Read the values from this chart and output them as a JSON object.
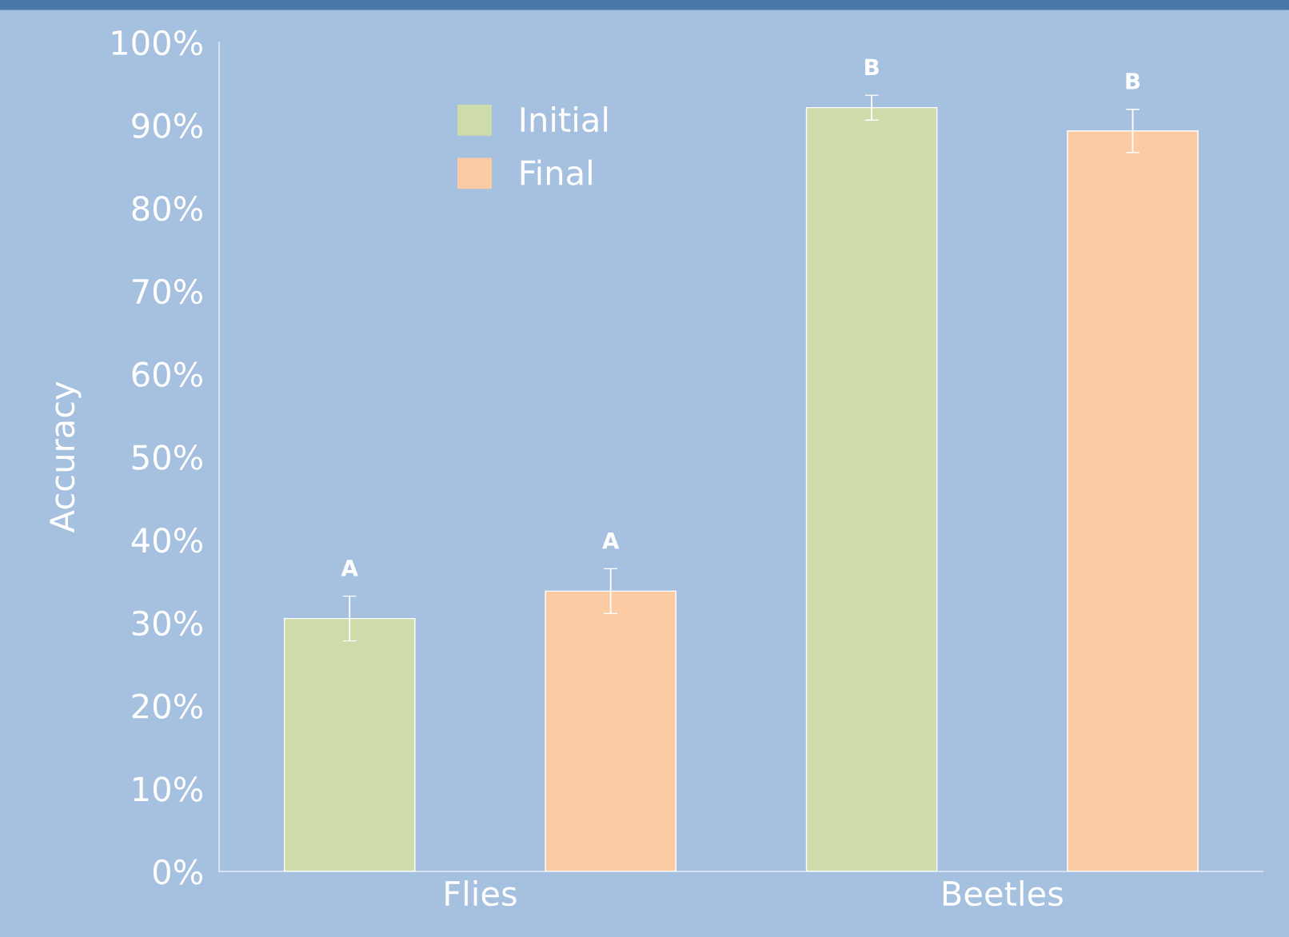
{
  "chart_data": {
    "type": "bar",
    "ylabel": "Accuracy",
    "categories": [
      "Flies",
      "Beetles"
    ],
    "series": [
      {
        "name": "Initial",
        "color": "#cddcaa",
        "values": [
          30.5,
          92.1
        ],
        "errors": [
          2.7,
          1.5
        ]
      },
      {
        "name": "Final",
        "color": "#fbcba3",
        "values": [
          33.8,
          89.3
        ],
        "errors": [
          2.7,
          2.6
        ]
      }
    ],
    "annotations": [
      "A",
      "A",
      "B",
      "B"
    ],
    "ylim": [
      0,
      100
    ],
    "yticks": [
      {
        "value": 0,
        "label": "0%"
      },
      {
        "value": 10,
        "label": "10%"
      },
      {
        "value": 20,
        "label": "20%"
      },
      {
        "value": 30,
        "label": "30%"
      },
      {
        "value": 40,
        "label": "40%"
      },
      {
        "value": 50,
        "label": "50%"
      },
      {
        "value": 60,
        "label": "60%"
      },
      {
        "value": 70,
        "label": "70%"
      },
      {
        "value": 80,
        "label": "80%"
      },
      {
        "value": 90,
        "label": "90%"
      },
      {
        "value": 100,
        "label": "100%"
      }
    ],
    "grid": false,
    "legend": "top left"
  }
}
